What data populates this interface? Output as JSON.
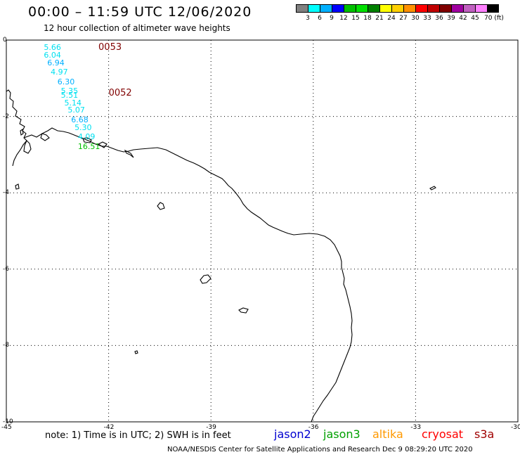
{
  "header": {
    "title": "00:00 – 11:59 UTC 12/06/2020",
    "subtitle": "12 hour collection of altimeter wave heights"
  },
  "colorbar": {
    "colors": [
      "#808080",
      "#00ffff",
      "#00b0ff",
      "#0000ff",
      "#00c000",
      "#00e000",
      "#008000",
      "#ffff00",
      "#ffd000",
      "#ff9000",
      "#ff0000",
      "#c00000",
      "#800000",
      "#a000a0",
      "#c060c0",
      "#ff80ff",
      "#000000"
    ],
    "labels": [
      "3",
      "6",
      "9",
      "12",
      "15",
      "18",
      "21",
      "24",
      "27",
      "30",
      "33",
      "36",
      "39",
      "42",
      "45",
      "70 (ft)"
    ]
  },
  "map": {
    "lon_range": [
      -45,
      -30
    ],
    "lat_range": [
      -10,
      0
    ],
    "x_ticks": [
      "-45",
      "-42",
      "-39",
      "-36",
      "-33",
      "-30"
    ],
    "y_ticks": [
      "0",
      "-2",
      "-4",
      "-6",
      "-8",
      "-10"
    ],
    "grid": true,
    "grid_style": "dotted"
  },
  "track_times": [
    {
      "label": "0053",
      "lon": -42.3,
      "lat": -0.2
    },
    {
      "label": "0052",
      "lon": -42.0,
      "lat": -1.4
    }
  ],
  "wave_heights": [
    {
      "text": "5.66",
      "lon": -43.9,
      "lat": -0.2,
      "color": "#00e0f0"
    },
    {
      "text": "6.04",
      "lon": -43.9,
      "lat": -0.4,
      "color": "#00e0f0"
    },
    {
      "text": "6.94",
      "lon": -43.8,
      "lat": -0.6,
      "color": "#00b0ff"
    },
    {
      "text": "4.97",
      "lon": -43.7,
      "lat": -0.85,
      "color": "#00e0f0"
    },
    {
      "text": "6.30",
      "lon": -43.5,
      "lat": -1.1,
      "color": "#00b0ff"
    },
    {
      "text": "5.35",
      "lon": -43.4,
      "lat": -1.35,
      "color": "#00e0f0"
    },
    {
      "text": "5.51",
      "lon": -43.4,
      "lat": -1.45,
      "color": "#00e0f0"
    },
    {
      "text": "5.14",
      "lon": -43.3,
      "lat": -1.65,
      "color": "#00e0f0"
    },
    {
      "text": "5.07",
      "lon": -43.2,
      "lat": -1.85,
      "color": "#00e0f0"
    },
    {
      "text": "6.68",
      "lon": -43.1,
      "lat": -2.1,
      "color": "#00b0ff"
    },
    {
      "text": "5.30",
      "lon": -43.0,
      "lat": -2.3,
      "color": "#00e0f0"
    },
    {
      "text": "4.09",
      "lon": -42.9,
      "lat": -2.55,
      "color": "#00e0f0"
    },
    {
      "text": "16.51",
      "lon": -42.9,
      "lat": -2.8,
      "color": "#00c000"
    }
  ],
  "note": "note:  1) Time is in UTC;  2) SWH is in feet",
  "satellites": [
    {
      "name": "jason2",
      "color": "#0000d0"
    },
    {
      "name": "jason3",
      "color": "#00a000"
    },
    {
      "name": "altika",
      "color": "#ff9900"
    },
    {
      "name": "cryosat",
      "color": "#ff0000"
    },
    {
      "name": "s3a",
      "color": "#a00000"
    }
  ],
  "footer": "NOAA/NESDIS Center for Satellite Applications and Research    Dec  9 08:29:20 UTC 2020"
}
